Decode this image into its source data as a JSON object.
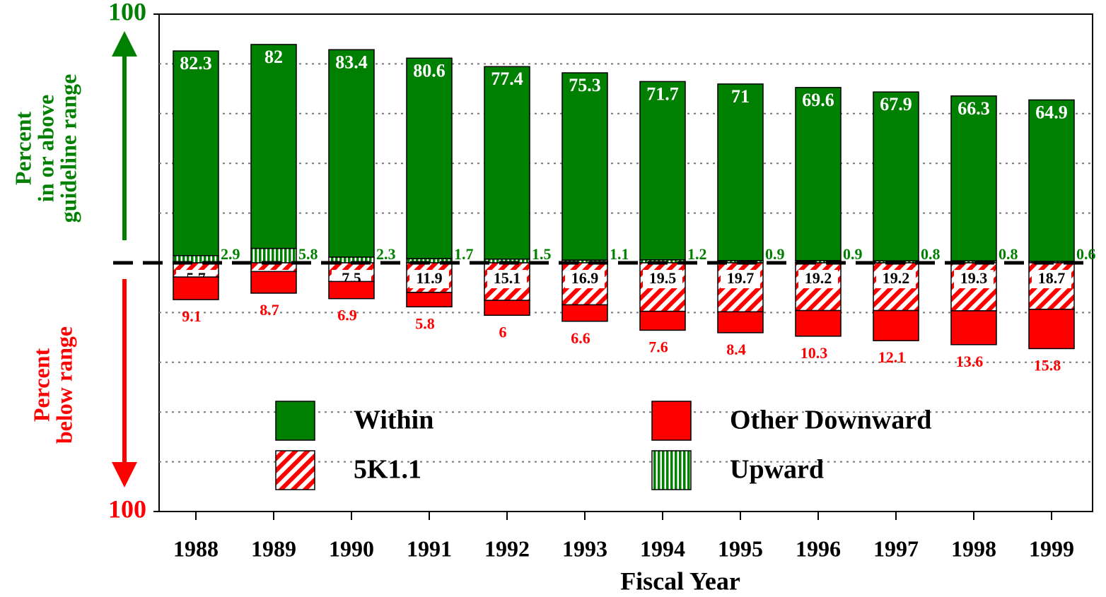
{
  "chart_data": {
    "type": "diverging_stacked_bar",
    "y_label_upper": [
      "Percent",
      "in or above",
      "guideline range"
    ],
    "y_label_lower": [
      "Percent",
      "below range"
    ],
    "x_label": "Fiscal Year",
    "categories": [
      "1988",
      "1989",
      "1990",
      "1991",
      "1992",
      "1993",
      "1994",
      "1995",
      "1996",
      "1997",
      "1998",
      "1999"
    ],
    "series": [
      {
        "name": "Upward",
        "color": "#008000",
        "direction": "up",
        "pattern": "vertical",
        "values": [
          2.9,
          5.8,
          2.3,
          1.7,
          1.5,
          1.1,
          1.2,
          0.9,
          0.9,
          0.8,
          0.8,
          0.6
        ]
      },
      {
        "name": "Within",
        "color": "#008000",
        "direction": "up",
        "pattern": "solid",
        "values": [
          82.3,
          82,
          83.4,
          80.6,
          77.4,
          75.3,
          71.7,
          71,
          69.6,
          67.9,
          66.3,
          64.9
        ]
      },
      {
        "name": "5K1.1",
        "color": "#ff0000",
        "direction": "down",
        "pattern": "diagonal",
        "values": [
          5.7,
          3.5,
          7.5,
          11.9,
          15.1,
          16.9,
          19.5,
          19.7,
          19.2,
          19.2,
          19.3,
          18.7
        ]
      },
      {
        "name": "Other Downward",
        "color": "#ff0000",
        "direction": "down",
        "pattern": "solid",
        "values": [
          9.1,
          8.7,
          6.9,
          5.8,
          6,
          6.6,
          7.6,
          8.4,
          10.3,
          12.1,
          13.6,
          15.8
        ]
      }
    ],
    "ylim": [
      -100,
      100
    ],
    "yticks": [
      {
        "value": -100,
        "label": "100"
      },
      {
        "value": 100,
        "label": "100"
      }
    ],
    "grid_lines": [
      -80,
      -60,
      -40,
      -20,
      20,
      40,
      60,
      80
    ],
    "grid": true
  }
}
